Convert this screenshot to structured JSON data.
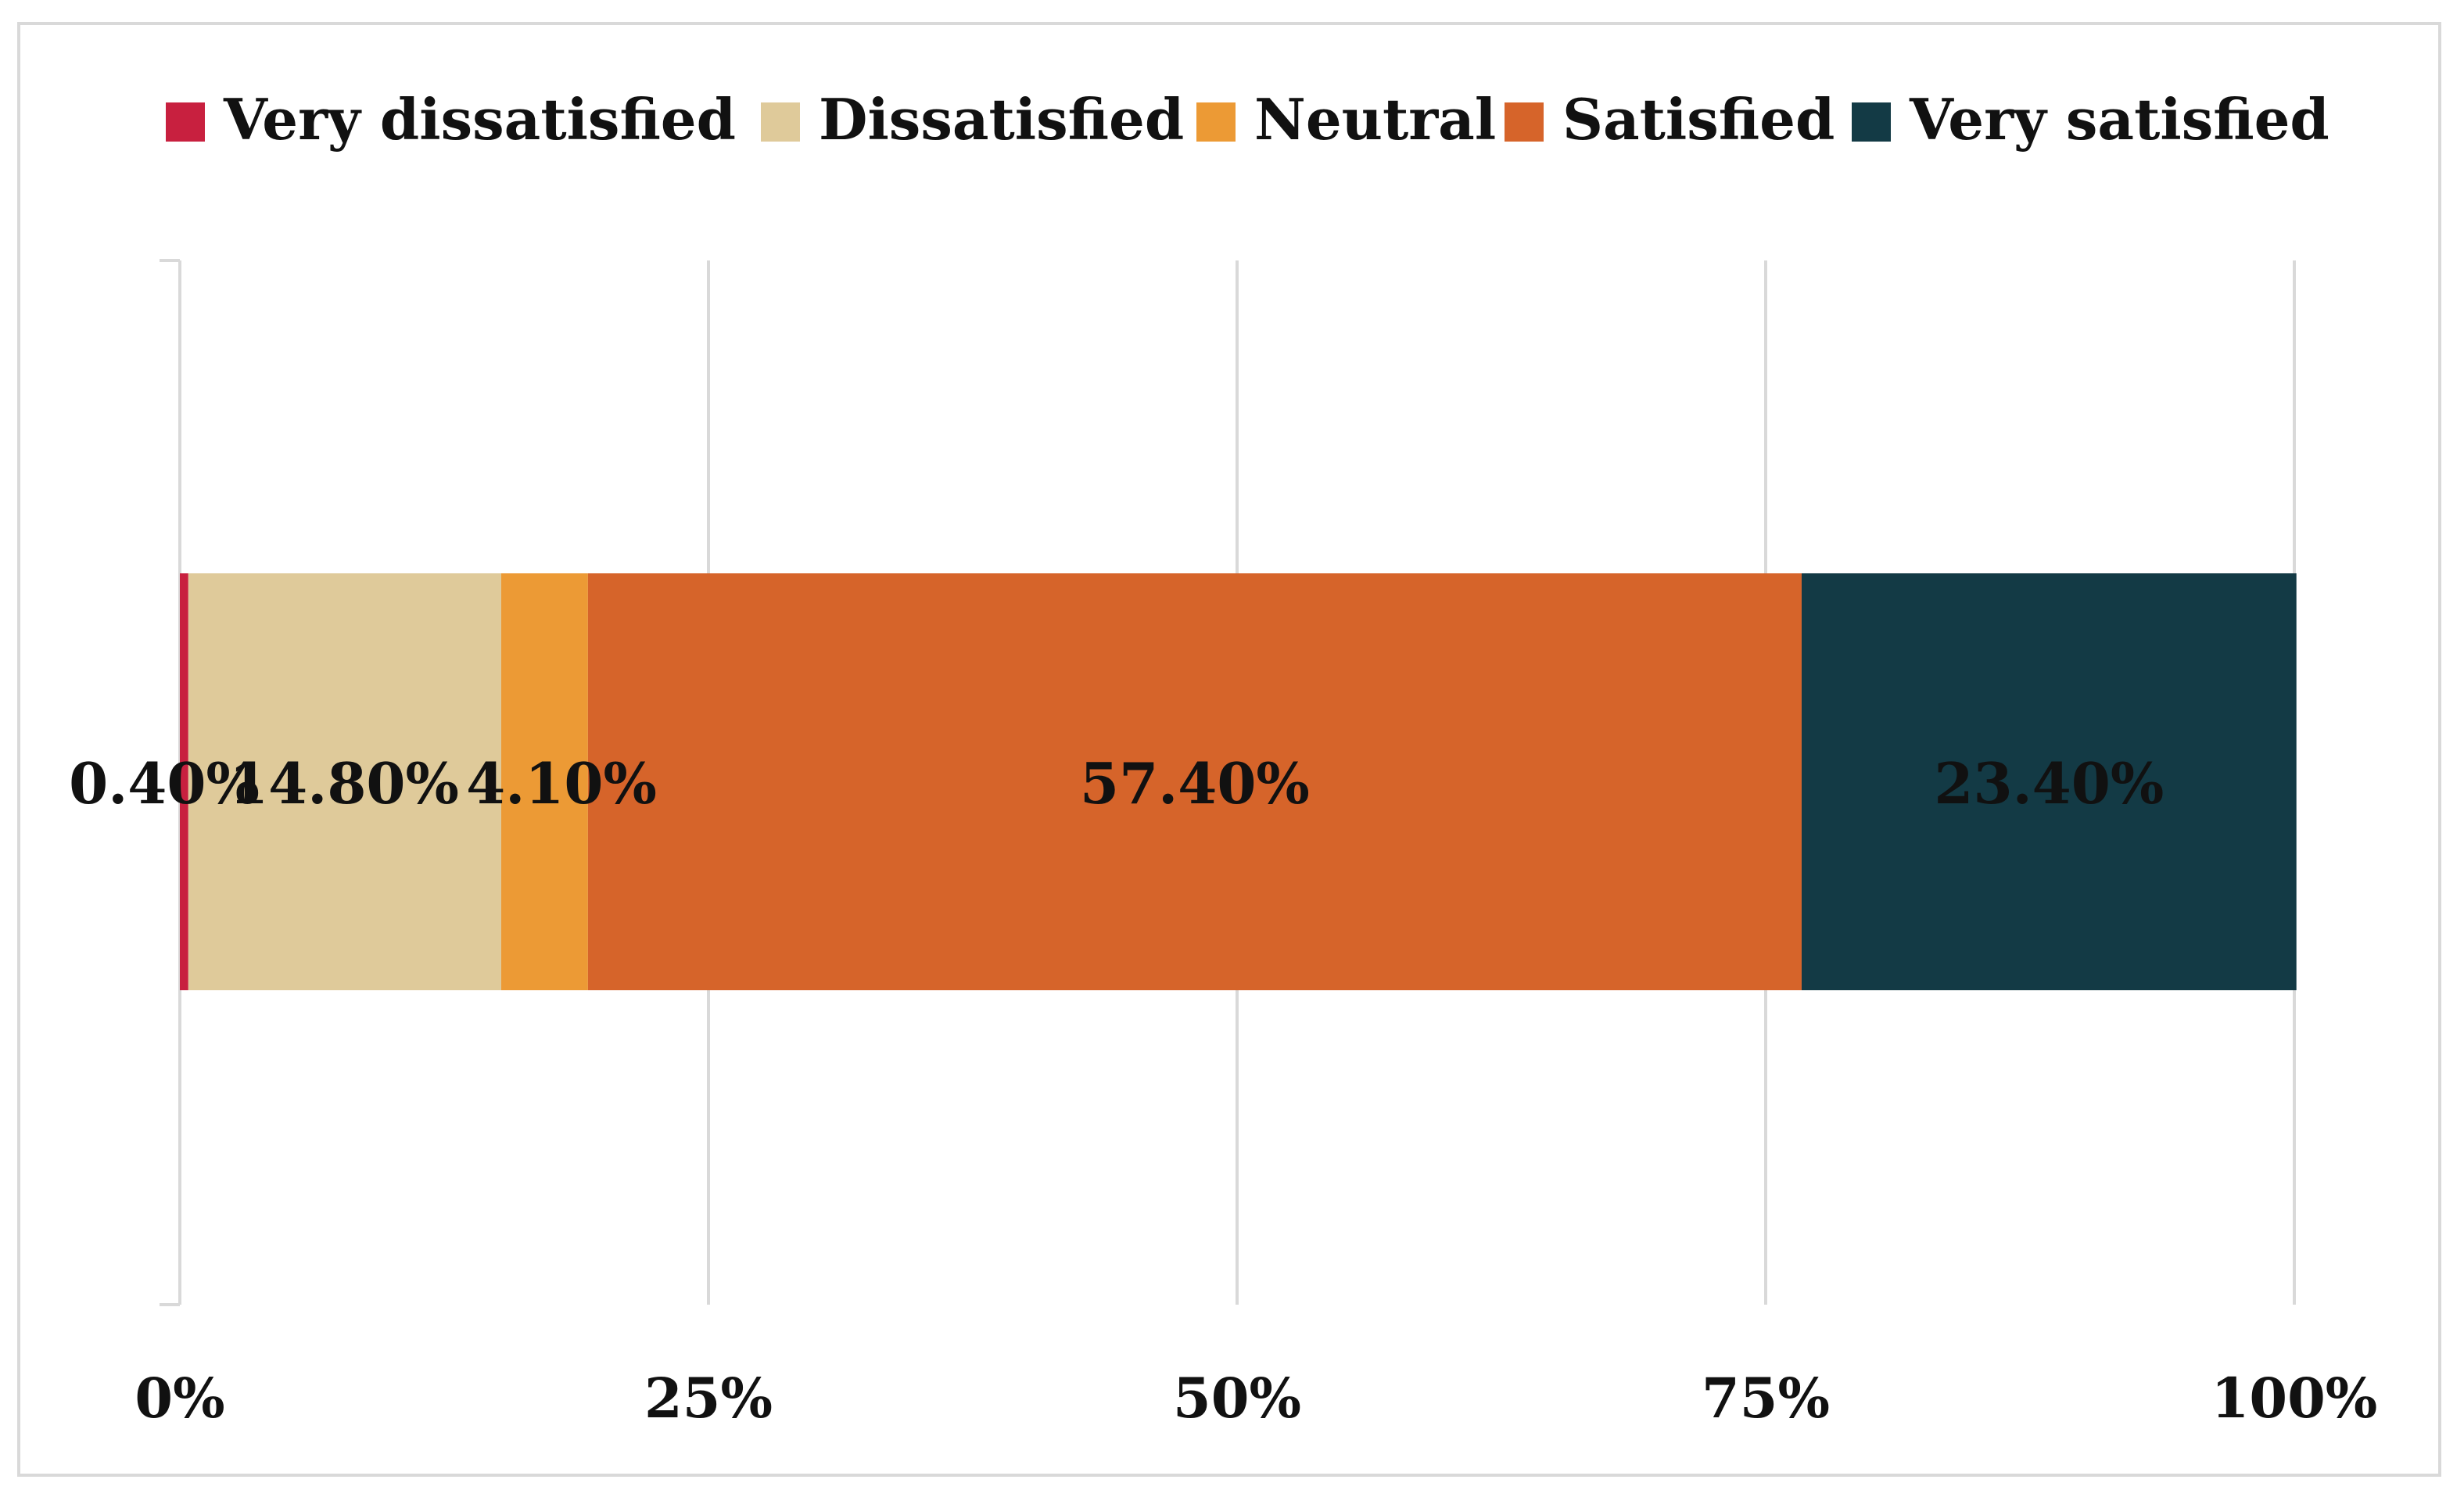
{
  "chart_data": {
    "type": "bar",
    "orientation": "horizontal",
    "stacked": "percent",
    "title": "",
    "xlabel": "",
    "ylabel": "",
    "xlim": [
      0,
      100
    ],
    "grid": true,
    "legend_position": "top",
    "x_ticks": [
      "0%",
      "25%",
      "50%",
      "75%",
      "100%"
    ],
    "x_tick_values": [
      0,
      25,
      50,
      75,
      100
    ],
    "categories": [
      ""
    ],
    "series": [
      {
        "name": "Very dissatisfied",
        "color": "#c8203f",
        "values": [
          0.4
        ],
        "label": "0.40%"
      },
      {
        "name": "Dissatisfied",
        "color": "#dfca9a",
        "values": [
          14.8
        ],
        "label": "14.80%"
      },
      {
        "name": "Neutral",
        "color": "#ec9a35",
        "values": [
          4.1
        ],
        "label": "4.10%"
      },
      {
        "name": "Satisfied",
        "color": "#d6642a",
        "values": [
          57.4
        ],
        "label": "57.40%"
      },
      {
        "name": "Very satisfied",
        "color": "#133a45",
        "values": [
          23.4
        ],
        "label": "23.40%"
      }
    ]
  }
}
